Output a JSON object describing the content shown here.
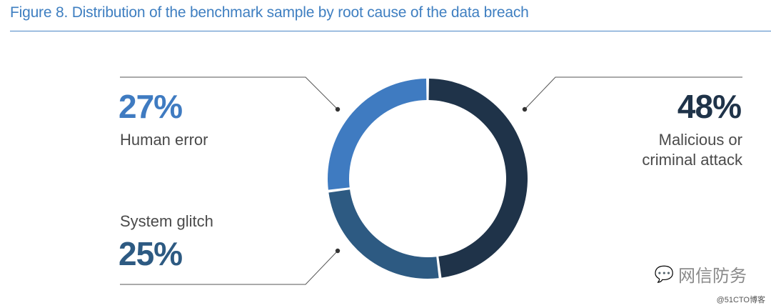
{
  "figure_title": "Figure 8. Distribution of the benchmark sample by root cause of the data breach",
  "chart_data": {
    "type": "pie",
    "title": "Figure 8. Distribution of the benchmark sample by root cause of the data breach",
    "categories": [
      "Malicious or criminal attack",
      "System glitch",
      "Human error"
    ],
    "values": [
      48,
      25,
      27
    ],
    "unit": "%",
    "colors": [
      "#1f3349",
      "#2d5a82",
      "#3f7bc1"
    ],
    "labels": [
      {
        "pct": "48%",
        "name_lines": [
          "Malicious or",
          "criminal attack"
        ]
      },
      {
        "pct": "27%",
        "name_lines": [
          "Human error"
        ]
      },
      {
        "pct": "25%",
        "name_lines": [
          "System glitch"
        ]
      }
    ]
  },
  "watermark": {
    "text": "网信防务",
    "icon": "wechat-icon"
  },
  "credit": "@51CTO博客"
}
